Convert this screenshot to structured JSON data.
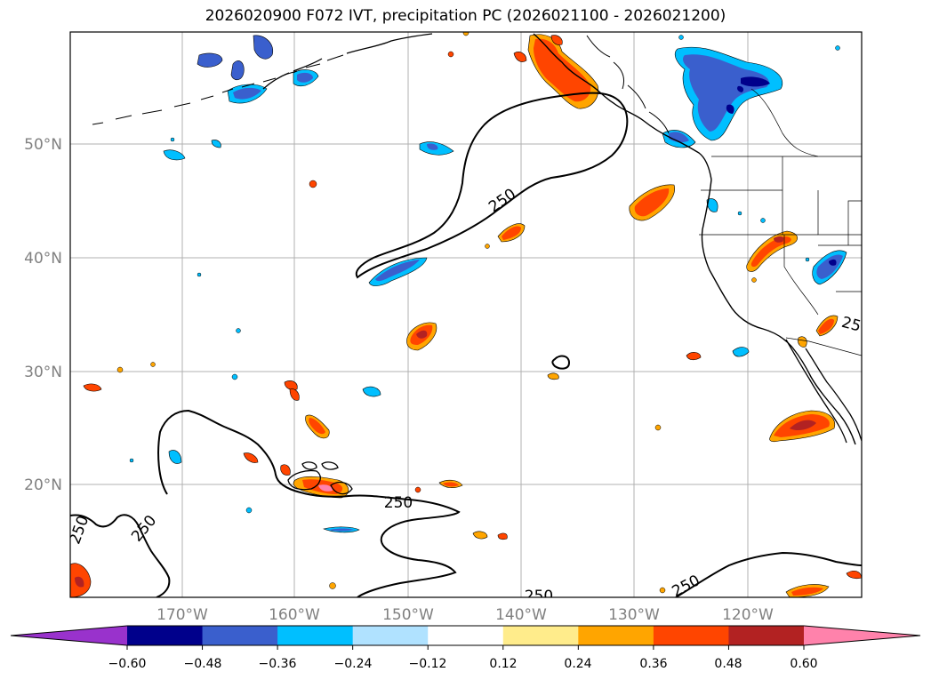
{
  "title": "2026020900 F072 IVT, precipitation PC (2026021100 - 2026021200)",
  "latitude_labels": [
    "50°N",
    "40°N",
    "30°N",
    "20°N"
  ],
  "longitude_labels": [
    "170°W",
    "160°W",
    "150°W",
    "140°W",
    "130°W",
    "120°W"
  ],
  "contour_labels": [
    "250",
    "250",
    "250",
    "250",
    "250",
    "250",
    "25"
  ],
  "colorbar": {
    "ticks": [
      "−0.60",
      "−0.48",
      "−0.36",
      "−0.24",
      "−0.12",
      "0.12",
      "0.24",
      "0.36",
      "0.48",
      "0.60"
    ],
    "colors": [
      "#9932cc",
      "#00008b",
      "#3a5fcd",
      "#00bfff",
      "#b0e2ff",
      "#ffffff",
      "#ffec8b",
      "#ffa500",
      "#ff4500",
      "#b22222",
      "#ff82ab"
    ]
  },
  "colors": {
    "neg_mid": "#3a5fcd",
    "neg_dark": "#00008b",
    "neg_light": "#00bfff",
    "neg_pale": "#b0e2ff",
    "pos_pale": "#ffec8b",
    "pos_light": "#ffa500",
    "pos_mid": "#ff4500",
    "pos_dark": "#b22222",
    "pos_max": "#ff82ab"
  }
}
